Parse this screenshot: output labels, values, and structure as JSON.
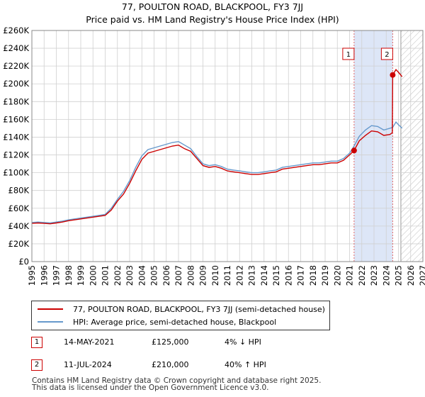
{
  "titles": {
    "line1": "77, POULTON ROAD, BLACKPOOL, FY3 7JJ",
    "line2": "Price paid vs. HM Land Registry's House Price Index (HPI)"
  },
  "colors": {
    "property": "#cc0000",
    "hpi": "#6699cc",
    "shade": "#dde6f7",
    "vline": "#e06666",
    "grid": "#d0d0d0"
  },
  "legend": {
    "property_label": "77, POULTON ROAD, BLACKPOOL, FY3 7JJ (semi-detached house)",
    "hpi_label": "HPI: Average price, semi-detached house, Blackpool"
  },
  "transactions": [
    {
      "num": "1",
      "date": "14-MAY-2021",
      "price": "£125,000",
      "hpi": "4% ↓ HPI"
    },
    {
      "num": "2",
      "date": "11-JUL-2024",
      "price": "£210,000",
      "hpi": "40% ↑ HPI"
    }
  ],
  "footer": {
    "line1": "Contains HM Land Registry data © Crown copyright and database right 2025.",
    "line2": "This data is licensed under the Open Government Licence v3.0."
  },
  "chart_data": {
    "type": "line",
    "title": "77, POULTON ROAD, BLACKPOOL, FY3 7JJ",
    "subtitle": "Price paid vs. HM Land Registry's House Price Index (HPI)",
    "xlim": [
      1995,
      2027
    ],
    "ylim": [
      0,
      260000
    ],
    "x_ticks": [
      1995,
      1996,
      1997,
      1998,
      1999,
      2000,
      2001,
      2002,
      2003,
      2004,
      2005,
      2006,
      2007,
      2008,
      2009,
      2010,
      2011,
      2012,
      2013,
      2014,
      2015,
      2016,
      2017,
      2018,
      2019,
      2020,
      2021,
      2022,
      2023,
      2024,
      2025,
      2026,
      2027
    ],
    "x_tick_labels": [
      "1995",
      "1996",
      "1997",
      "1998",
      "1999",
      "2000",
      "2001",
      "2002",
      "2003",
      "2004",
      "2005",
      "2006",
      "2007",
      "2008",
      "2009",
      "2010",
      "2011",
      "2012",
      "2013",
      "2014",
      "2015",
      "2016",
      "2017",
      "2018",
      "2019",
      "2020",
      "2021",
      "2022",
      "2023",
      "2024",
      "2025",
      "2026",
      "2027"
    ],
    "y_ticks": [
      0,
      20000,
      40000,
      60000,
      80000,
      100000,
      120000,
      140000,
      160000,
      180000,
      200000,
      220000,
      240000,
      260000
    ],
    "y_tick_labels": [
      "£0",
      "£20K",
      "£40K",
      "£60K",
      "£80K",
      "£100K",
      "£120K",
      "£140K",
      "£160K",
      "£180K",
      "£200K",
      "£220K",
      "£240K",
      "£260K"
    ],
    "grid": true,
    "shaded_region": [
      2021.37,
      2024.53
    ],
    "future_hatch_from": 2025.2,
    "markers": [
      {
        "label": "1",
        "x": 2021.37,
        "y": 125000
      },
      {
        "label": "2",
        "x": 2024.53,
        "y": 210000
      }
    ],
    "series": [
      {
        "name": "77, POULTON ROAD, BLACKPOOL, FY3 7JJ (semi-detached house)",
        "x": [
          1995.0,
          1995.5,
          1996.0,
          1996.5,
          1997.0,
          1997.5,
          1998.0,
          1998.5,
          1999.0,
          1999.5,
          2000.0,
          2000.5,
          2001.0,
          2001.5,
          2002.0,
          2002.5,
          2003.0,
          2003.5,
          2004.0,
          2004.5,
          2005.0,
          2005.5,
          2006.0,
          2006.5,
          2007.0,
          2007.5,
          2008.0,
          2008.5,
          2009.0,
          2009.5,
          2010.0,
          2010.5,
          2011.0,
          2011.5,
          2012.0,
          2012.5,
          2013.0,
          2013.5,
          2014.0,
          2014.5,
          2015.0,
          2015.5,
          2016.0,
          2016.5,
          2017.0,
          2017.5,
          2018.0,
          2018.5,
          2019.0,
          2019.5,
          2020.0,
          2020.5,
          2021.0,
          2021.37,
          2021.8,
          2022.3,
          2022.8,
          2023.3,
          2023.8,
          2024.3,
          2024.5,
          2024.53,
          2024.8,
          2025.0,
          2025.3
        ],
        "values": [
          43000,
          43500,
          43000,
          42500,
          43500,
          44500,
          46000,
          47000,
          48000,
          49000,
          50000,
          51000,
          52000,
          58000,
          68000,
          76000,
          88000,
          102000,
          115000,
          122000,
          124000,
          126000,
          128000,
          130000,
          131000,
          127000,
          124000,
          116000,
          108000,
          106000,
          107000,
          105000,
          102000,
          101000,
          100000,
          99000,
          98000,
          98000,
          99000,
          100000,
          101000,
          104000,
          105000,
          106000,
          107000,
          108000,
          109000,
          109000,
          110000,
          111000,
          111000,
          114000,
          120000,
          125000,
          136000,
          142000,
          147000,
          146000,
          142000,
          143000,
          145000,
          210000,
          216000,
          213000,
          208000
        ]
      },
      {
        "name": "HPI: Average price, semi-detached house, Blackpool",
        "x": [
          1995.0,
          1995.5,
          1996.0,
          1996.5,
          1997.0,
          1997.5,
          1998.0,
          1998.5,
          1999.0,
          1999.5,
          2000.0,
          2000.5,
          2001.0,
          2001.5,
          2002.0,
          2002.5,
          2003.0,
          2003.5,
          2004.0,
          2004.5,
          2005.0,
          2005.5,
          2006.0,
          2006.5,
          2007.0,
          2007.5,
          2008.0,
          2008.5,
          2009.0,
          2009.5,
          2010.0,
          2010.5,
          2011.0,
          2011.5,
          2012.0,
          2012.5,
          2013.0,
          2013.5,
          2014.0,
          2014.5,
          2015.0,
          2015.5,
          2016.0,
          2016.5,
          2017.0,
          2017.5,
          2018.0,
          2018.5,
          2019.0,
          2019.5,
          2020.0,
          2020.5,
          2021.0,
          2021.37,
          2021.8,
          2022.3,
          2022.8,
          2023.3,
          2023.8,
          2024.3,
          2024.53,
          2024.8,
          2025.0,
          2025.3
        ],
        "values": [
          44000,
          44500,
          44000,
          43500,
          44500,
          45500,
          47000,
          48000,
          49000,
          50000,
          51000,
          52000,
          53000,
          60000,
          70000,
          79000,
          91000,
          106000,
          119000,
          126000,
          128000,
          130000,
          132000,
          134000,
          135000,
          131000,
          127000,
          118000,
          110000,
          108000,
          109000,
          107000,
          104000,
          103000,
          102000,
          101000,
          100000,
          100000,
          101000,
          102000,
          103000,
          106000,
          107000,
          108000,
          109000,
          110000,
          111000,
          111000,
          112000,
          113000,
          113000,
          116000,
          122000,
          130000,
          141000,
          148000,
          153000,
          152000,
          148000,
          150000,
          151000,
          157000,
          154000,
          150000
        ]
      }
    ]
  }
}
